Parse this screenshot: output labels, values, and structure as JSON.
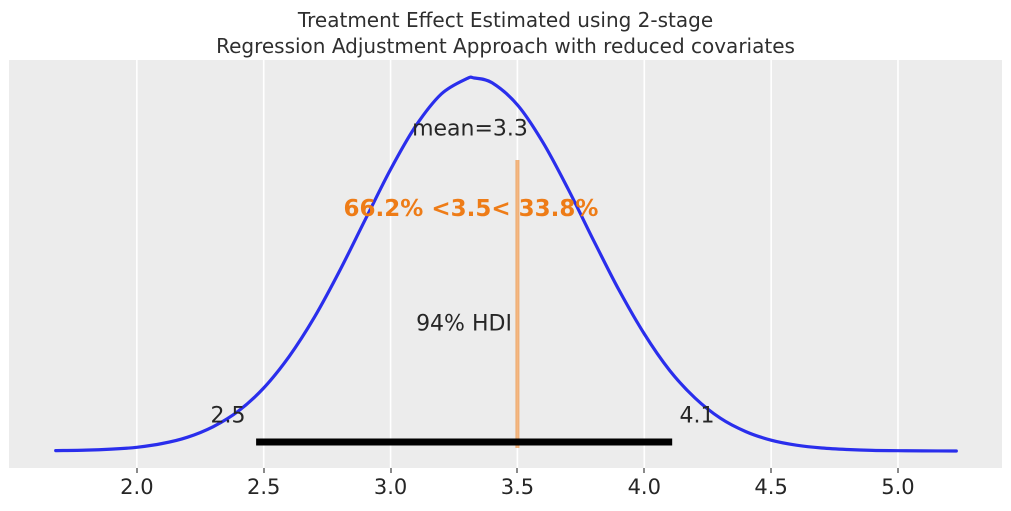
{
  "title": {
    "line1": "Treatment Effect Estimated using 2-stage",
    "line2": "Regression Adjustment Approach with reduced covariates"
  },
  "annotations": {
    "mean_label": "mean=3.3",
    "ref_text": "66.2% <3.5< 33.8%",
    "hdi_label": "94% HDI",
    "hdi_low_label": "2.5",
    "hdi_high_label": "4.1"
  },
  "colors": {
    "axes_background": "#ececec",
    "grid": "#ffffff",
    "kde_line": "#2a2eec",
    "ref_line": "#ee7c17",
    "ref_text": "#ee7c17",
    "hdi_bar": "#000000",
    "text": "#262626",
    "tick_mark": "#8a8a8a"
  },
  "chart_data": {
    "type": "line",
    "title": "Treatment Effect Estimated using 2-stage Regression Adjustment Approach with reduced covariates",
    "xlabel": "",
    "ylabel": "",
    "xlim": [
      1.496,
      5.41
    ],
    "grid": "vertical-only",
    "x_ticks": [
      {
        "value": 2.0,
        "label": "2.0"
      },
      {
        "value": 2.5,
        "label": "2.5"
      },
      {
        "value": 3.0,
        "label": "3.0"
      },
      {
        "value": 3.5,
        "label": "3.5"
      },
      {
        "value": 4.0,
        "label": "4.0"
      },
      {
        "value": 4.5,
        "label": "4.5"
      },
      {
        "value": 5.0,
        "label": "5.0"
      }
    ],
    "mean": 3.3,
    "ref_val": 3.5,
    "pct_below_ref": 66.2,
    "pct_above_ref": 33.8,
    "hdi": {
      "prob": 94,
      "lower": 2.47,
      "upper": 4.11
    },
    "kde": {
      "x": [
        1.68,
        1.8,
        1.9,
        2.0,
        2.1,
        2.2,
        2.3,
        2.4,
        2.5,
        2.6,
        2.7,
        2.8,
        2.9,
        3.0,
        3.1,
        3.2,
        3.3,
        3.33,
        3.4,
        3.5,
        3.6,
        3.7,
        3.8,
        3.9,
        4.0,
        4.1,
        4.2,
        4.3,
        4.4,
        4.5,
        4.6,
        4.7,
        4.8,
        4.9,
        5.0,
        5.1,
        5.23
      ],
      "density": [
        0.001,
        0.0024,
        0.005,
        0.01,
        0.02,
        0.037,
        0.065,
        0.107,
        0.169,
        0.253,
        0.359,
        0.484,
        0.62,
        0.755,
        0.872,
        0.957,
        0.998,
        1.0,
        0.987,
        0.928,
        0.828,
        0.702,
        0.565,
        0.432,
        0.314,
        0.216,
        0.142,
        0.088,
        0.052,
        0.029,
        0.0155,
        0.008,
        0.004,
        0.0017,
        0.0008,
        0.0003,
        0.0001
      ]
    }
  }
}
